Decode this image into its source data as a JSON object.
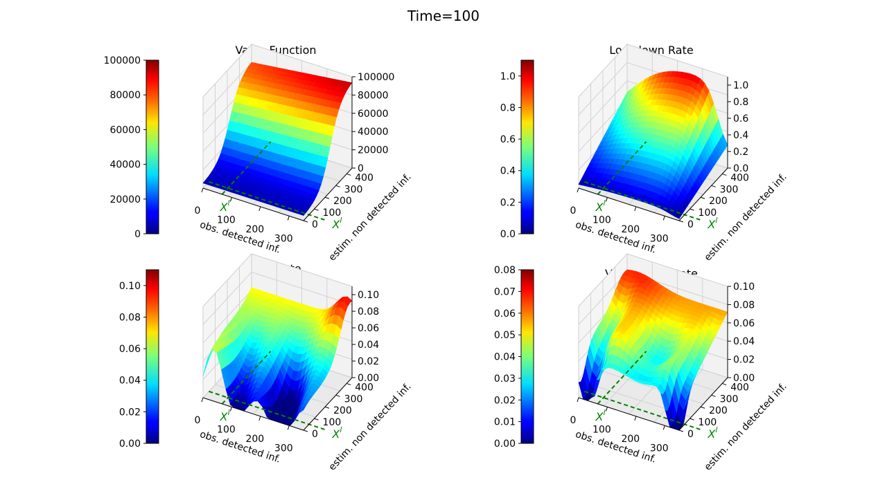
{
  "figure": {
    "suptitle": "Time=100",
    "axis_labels": {
      "x": "obs. detected inf.",
      "y": "estim. non detected inf."
    },
    "x_ticks": [
      "0",
      "100",
      "200",
      "300"
    ],
    "y_ticks": [
      "0",
      "100",
      "200",
      "300",
      "400"
    ],
    "marker_x": "X",
    "marker_x_sup": "l",
    "marker_y": "X",
    "marker_y_sup": "l",
    "marker_color": "#008000",
    "colormap": "jet"
  },
  "chart_data": [
    {
      "id": "value",
      "type": "surface",
      "title": "Value Function",
      "colorbar_ticks": [
        "0",
        "20000",
        "40000",
        "60000",
        "80000",
        "100000"
      ],
      "colorbar_range": [
        0,
        100000
      ],
      "z_ticks": [
        "0",
        "20000",
        "40000",
        "60000",
        "80000",
        "100000"
      ],
      "z_range": [
        0,
        100000
      ],
      "xlim": [
        0,
        350
      ],
      "ylim": [
        0,
        450
      ],
      "shape": "value"
    },
    {
      "id": "lockdown",
      "type": "surface",
      "title": "Lockdown Rate",
      "colorbar_ticks": [
        "0.0",
        "0.2",
        "0.4",
        "0.6",
        "0.8",
        "1.0"
      ],
      "colorbar_range": [
        0,
        1.1
      ],
      "z_ticks": [
        "0.0",
        "0.2",
        "0.4",
        "0.6",
        "0.8",
        "1.0"
      ],
      "z_range": [
        0,
        1.1
      ],
      "xlim": [
        0,
        350
      ],
      "ylim": [
        0,
        450
      ],
      "shape": "lockdown"
    },
    {
      "id": "test",
      "type": "surface",
      "title": "Test Rate",
      "colorbar_ticks": [
        "0.00",
        "0.02",
        "0.04",
        "0.06",
        "0.08",
        "0.10"
      ],
      "colorbar_range": [
        0,
        0.11
      ],
      "z_ticks": [
        "0.00",
        "0.02",
        "0.04",
        "0.06",
        "0.08",
        "0.10"
      ],
      "z_range": [
        0,
        0.11
      ],
      "xlim": [
        0,
        350
      ],
      "ylim": [
        0,
        450
      ],
      "shape": "test"
    },
    {
      "id": "vaccination",
      "type": "surface",
      "title": "Vaccination Rate",
      "colorbar_ticks": [
        "0.00",
        "0.01",
        "0.02",
        "0.03",
        "0.04",
        "0.05",
        "0.06",
        "0.07",
        "0.08"
      ],
      "colorbar_range": [
        0,
        0.08
      ],
      "z_ticks": [
        "0.00",
        "0.02",
        "0.04",
        "0.06",
        "0.08",
        "0.10"
      ],
      "z_range": [
        0,
        0.1
      ],
      "xlim": [
        0,
        350
      ],
      "ylim": [
        0,
        450
      ],
      "shape": "vaccination"
    }
  ]
}
